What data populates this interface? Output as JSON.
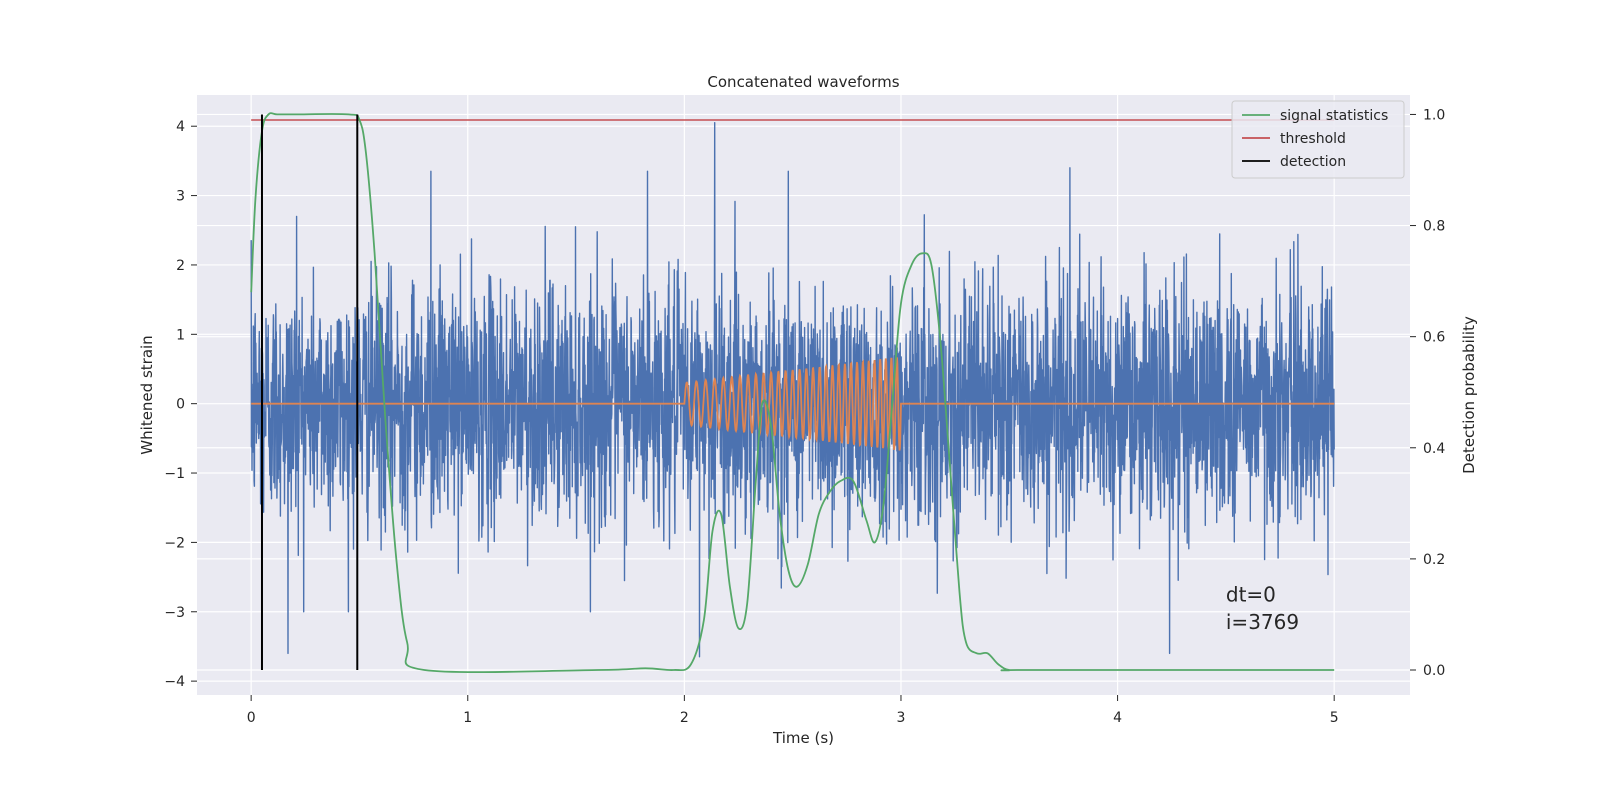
{
  "chart_data": {
    "type": "line",
    "title": "Concatenated waveforms",
    "xlabel": "Time (s)",
    "ylabel_left": "Whitened strain",
    "ylabel_right": "Detection probability",
    "xlim": [
      -0.25,
      5.35
    ],
    "ylim_left": [
      -4.2,
      4.45
    ],
    "ylim_right": [
      -0.045,
      1.035
    ],
    "x_ticks": [
      0,
      1,
      2,
      3,
      4,
      5
    ],
    "y_ticks_left": [
      -4,
      -3,
      -2,
      -1,
      0,
      1,
      2,
      3,
      4
    ],
    "y_ticks_right": [
      0.0,
      0.2,
      0.4,
      0.6,
      0.8,
      1.0
    ],
    "grid": true,
    "legend_position": "top-right",
    "legend": [
      "signal statistics",
      "threshold",
      "detection"
    ],
    "annotation_lines": [
      "dt=0",
      "i=3769"
    ],
    "colors": {
      "strain": "#4c72b0",
      "template": "#dd8452",
      "signal_statistics": "#55a868",
      "threshold": "#c44e52",
      "detection": "#000000",
      "axes_bg": "#eaeaf2",
      "grid": "#ffffff"
    },
    "series": [
      {
        "name": "strain",
        "axis": "left",
        "x_range": [
          0,
          5
        ],
        "approx_std": 0.85,
        "notable_peaks": [
          [
            0.21,
            2.7
          ],
          [
            0.83,
            3.35
          ],
          [
            1.83,
            3.35
          ],
          [
            2.14,
            4.05
          ],
          [
            2.48,
            3.35
          ],
          [
            3.78,
            3.4
          ],
          [
            4.24,
            -3.6
          ],
          [
            0.17,
            -3.6
          ],
          [
            2.07,
            -3.65
          ]
        ]
      },
      {
        "name": "template",
        "axis": "left",
        "x": [
          0,
          2,
          2.2,
          2.4,
          2.6,
          2.8,
          3.0,
          5
        ],
        "amplitude": [
          0,
          0.3,
          0.38,
          0.45,
          0.52,
          0.6,
          0.68,
          0
        ]
      },
      {
        "name": "signal statistics",
        "axis": "right",
        "x": [
          0,
          0.02,
          0.05,
          0.08,
          0.12,
          0.2,
          0.45,
          0.5,
          0.53,
          0.57,
          0.62,
          0.67,
          0.72,
          0.8,
          1.6,
          1.82,
          1.95,
          2.03,
          2.09,
          2.13,
          2.17,
          2.21,
          2.25,
          2.29,
          2.33,
          2.36,
          2.4,
          2.44,
          2.48,
          2.52,
          2.57,
          2.62,
          2.67,
          2.72,
          2.78,
          2.84,
          2.88,
          2.92,
          2.96,
          3.0,
          3.05,
          3.1,
          3.14,
          3.18,
          3.22,
          3.27,
          3.3,
          3.35,
          3.4,
          3.45,
          3.5,
          3.6,
          5.0
        ],
        "y": [
          0.68,
          0.85,
          0.97,
          1.0,
          1.0,
          1.0,
          1.0,
          0.99,
          0.93,
          0.75,
          0.45,
          0.2,
          0.05,
          0.0,
          0.0,
          0.003,
          0.0,
          0.01,
          0.09,
          0.25,
          0.28,
          0.15,
          0.075,
          0.12,
          0.34,
          0.48,
          0.44,
          0.28,
          0.18,
          0.15,
          0.19,
          0.28,
          0.32,
          0.34,
          0.34,
          0.27,
          0.23,
          0.3,
          0.48,
          0.66,
          0.73,
          0.75,
          0.73,
          0.6,
          0.4,
          0.14,
          0.05,
          0.03,
          0.03,
          0.01,
          0.0,
          0.0,
          0.0
        ]
      },
      {
        "name": "threshold",
        "axis": "right",
        "x": [
          0,
          5
        ],
        "y": [
          0.99,
          0.99
        ]
      },
      {
        "name": "detection",
        "axis": "right",
        "vertical_lines_x": [
          0.05,
          0.49
        ],
        "y_range": [
          0.0,
          1.0
        ]
      }
    ]
  }
}
